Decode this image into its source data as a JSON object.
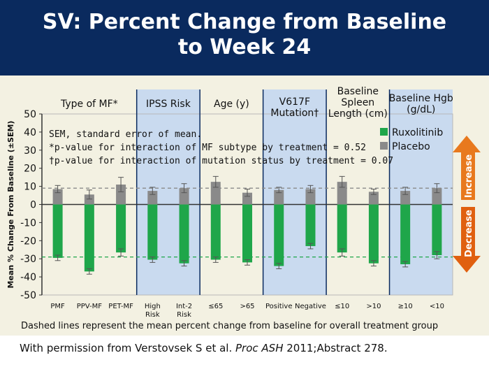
{
  "title_line1": "SV: Percent Change from Baseline",
  "title_line2": "to Week 24",
  "footnotes": [
    "SEM, standard error of mean.",
    "*p-value for interaction of MF subtype by treatment = 0.52",
    "†p-value for interaction of mutation status by treatment = 0.07"
  ],
  "dashed_note": "Dashed lines represent the mean percent change from baseline for overall treatment group",
  "citation": {
    "pre": "With permission from Verstovsek S et al. ",
    "journal": "Proc ASH",
    "post": " 2011;Abstract 278."
  },
  "arrows": {
    "increase": "Increase",
    "decrease": "Decrease",
    "up_color": "#e8791e",
    "down_color": "#e06010"
  },
  "chart_data": {
    "type": "bar",
    "ylabel": "Mean % Change From Baseline (±SEM)",
    "ylim": [
      -50,
      50
    ],
    "yticks": [
      50,
      40,
      30,
      20,
      10,
      0,
      -10,
      -20,
      -30,
      -40,
      -50
    ],
    "groups": [
      {
        "label": "Type of MF*",
        "categories": [
          "PMF",
          "PPV-MF",
          "PET-MF"
        ],
        "shaded": false
      },
      {
        "label": "IPSS Risk",
        "categories": [
          "High Risk",
          "Int-2 Risk"
        ],
        "shaded": true
      },
      {
        "label": "Age (y)",
        "categories": [
          "≤65",
          ">65"
        ],
        "shaded": false
      },
      {
        "label": "V617F Mutation†",
        "categories": [
          "Positive",
          "Negative"
        ],
        "shaded": true
      },
      {
        "label": "Baseline Spleen Length (cm)",
        "categories": [
          "≤10",
          ">10"
        ],
        "shaded": false
      },
      {
        "label": "Baseline Hgb (g/dL)",
        "categories": [
          "≥10",
          "<10"
        ],
        "shaded": true
      }
    ],
    "categories": [
      "PMF",
      "PPV-MF",
      "PET-MF",
      "High Risk",
      "Int-2 Risk",
      "≤65",
      ">65",
      "Positive",
      "Negative",
      "≤10",
      ">10",
      "≥10",
      "<10"
    ],
    "series": [
      {
        "name": "Ruxolitinib",
        "color": "#1fa64a",
        "values": [
          -29.5,
          -37,
          -26.5,
          -30.5,
          -32.5,
          -30.5,
          -32,
          -34,
          -23,
          -26.5,
          -32.5,
          -33,
          -28
        ],
        "errors": [
          1.5,
          1.5,
          2,
          1.5,
          1.5,
          1.5,
          1.5,
          1.5,
          1.5,
          2,
          1.5,
          1.5,
          2
        ]
      },
      {
        "name": "Placebo",
        "color": "#8a8a8a",
        "values": [
          8.5,
          5.5,
          11,
          7.5,
          9,
          12.5,
          6.5,
          8,
          8.5,
          12.5,
          7,
          7.5,
          9
        ],
        "errors": [
          2,
          2.5,
          4,
          2,
          2.5,
          3,
          2,
          1.5,
          2,
          3,
          1.5,
          2,
          2.5
        ]
      }
    ],
    "reference_lines": [
      {
        "value": 9,
        "color": "#8a8a8a",
        "dashed": true
      },
      {
        "value": -29,
        "color": "#1fa64a",
        "dashed": true
      }
    ],
    "legend_position": "top-right"
  }
}
